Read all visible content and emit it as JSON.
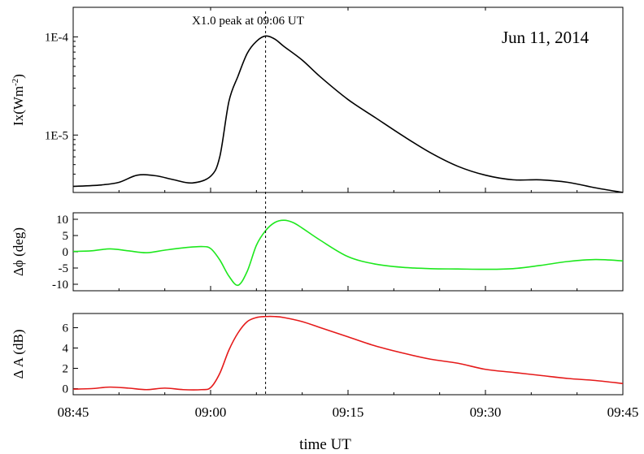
{
  "chart_data": {
    "type": "line",
    "date": "Jun 11, 2014",
    "annotation": "X1.0 peak at 09:06 UT",
    "peak_time": "09:06",
    "xlabel": "time UT",
    "x_ticks": [
      "08:45",
      "09:00",
      "09:15",
      "09:30",
      "09:45"
    ],
    "xlim": [
      "08:45",
      "09:45"
    ],
    "x_minor_tick_interval_minutes": 5,
    "panels": [
      {
        "id": "xray",
        "ylabel": "Ix(Wm-2)",
        "ylabel_base": "Ix(Wm",
        "ylabel_exp": "-2",
        "ylabel_close": ")",
        "yscale": "log",
        "ylim": [
          2.6e-06,
          0.0002
        ],
        "y_ticks": [
          {
            "value": 1e-05,
            "label": "1E-5"
          },
          {
            "value": 0.0001,
            "label": "1E-4"
          }
        ],
        "color": "#000000",
        "series": [
          {
            "x": [
              "08:45",
              "08:48",
              "08:50",
              "08:52",
              "08:54",
              "08:56",
              "08:58",
              "09:00",
              "09:01",
              "09:02",
              "09:03",
              "09:04",
              "09:05",
              "09:06",
              "09:07",
              "09:08",
              "09:10",
              "09:12",
              "09:15",
              "09:18",
              "09:21",
              "09:24",
              "09:27",
              "09:30",
              "09:33",
              "09:36",
              "09:39",
              "09:42",
              "09:45"
            ],
            "values": [
              3e-06,
              3.1e-06,
              3.3e-06,
              3.9e-06,
              3.85e-06,
              3.5e-06,
              3.25e-06,
              3.8e-06,
              6e-06,
              2.2e-05,
              4e-05,
              6.8e-05,
              9e-05,
              0.000102,
              9.5e-05,
              8e-05,
              5.8e-05,
              3.9e-05,
              2.3e-05,
              1.5e-05,
              9.8e-06,
              6.6e-06,
              4.8e-06,
              3.9e-06,
              3.5e-06,
              3.5e-06,
              3.3e-06,
              2.9e-06,
              2.6e-06
            ]
          }
        ]
      },
      {
        "id": "phase",
        "ylabel": "Δϕ (deg)",
        "yscale": "linear",
        "ylim": [
          -12,
          12
        ],
        "y_ticks": [
          {
            "value": 10,
            "label": "10"
          },
          {
            "value": 5,
            "label": "5"
          },
          {
            "value": 0,
            "label": "0"
          },
          {
            "value": -5,
            "label": "-5"
          },
          {
            "value": -10,
            "label": "-10"
          }
        ],
        "color": "#1ee81e",
        "series": [
          {
            "x": [
              "08:45",
              "08:47",
              "08:49",
              "08:51",
              "08:53",
              "08:55",
              "08:57",
              "08:59",
              "09:00",
              "09:01",
              "09:02",
              "09:03",
              "09:04",
              "09:05",
              "09:06",
              "09:07",
              "09:08",
              "09:09",
              "09:10",
              "09:12",
              "09:15",
              "09:18",
              "09:21",
              "09:24",
              "09:27",
              "09:30",
              "09:33",
              "09:36",
              "09:39",
              "09:42",
              "09:45"
            ],
            "values": [
              0.1,
              0.3,
              0.9,
              0.3,
              -0.3,
              0.5,
              1.2,
              1.6,
              1.0,
              -2.5,
              -7.5,
              -10.3,
              -6.0,
              2.0,
              6.5,
              9.0,
              9.7,
              9.0,
              7.3,
              3.5,
              -1.5,
              -3.8,
              -4.8,
              -5.2,
              -5.3,
              -5.4,
              -5.2,
              -4.2,
              -3.0,
              -2.4,
              -2.8
            ]
          }
        ]
      },
      {
        "id": "amplitude",
        "ylabel": "Δ A (dB)",
        "yscale": "linear",
        "ylim": [
          -0.6,
          7.4
        ],
        "y_ticks": [
          {
            "value": 6,
            "label": "6"
          },
          {
            "value": 4,
            "label": "4"
          },
          {
            "value": 2,
            "label": "2"
          },
          {
            "value": 0,
            "label": "0"
          }
        ],
        "color": "#e51a1a",
        "series": [
          {
            "x": [
              "08:45",
              "08:47",
              "08:49",
              "08:51",
              "08:53",
              "08:55",
              "08:57",
              "08:59",
              "09:00",
              "09:01",
              "09:02",
              "09:03",
              "09:04",
              "09:05",
              "09:06",
              "09:07",
              "09:08",
              "09:10",
              "09:12",
              "09:15",
              "09:18",
              "09:21",
              "09:24",
              "09:27",
              "09:30",
              "09:33",
              "09:36",
              "09:39",
              "09:42",
              "09:45"
            ],
            "values": [
              -0.05,
              0.0,
              0.15,
              0.05,
              -0.1,
              0.05,
              -0.1,
              -0.1,
              0.1,
              1.5,
              3.8,
              5.5,
              6.6,
              7.0,
              7.1,
              7.1,
              7.0,
              6.6,
              6.0,
              5.1,
              4.2,
              3.5,
              2.9,
              2.5,
              1.9,
              1.6,
              1.3,
              1.0,
              0.8,
              0.5
            ]
          }
        ]
      }
    ]
  }
}
